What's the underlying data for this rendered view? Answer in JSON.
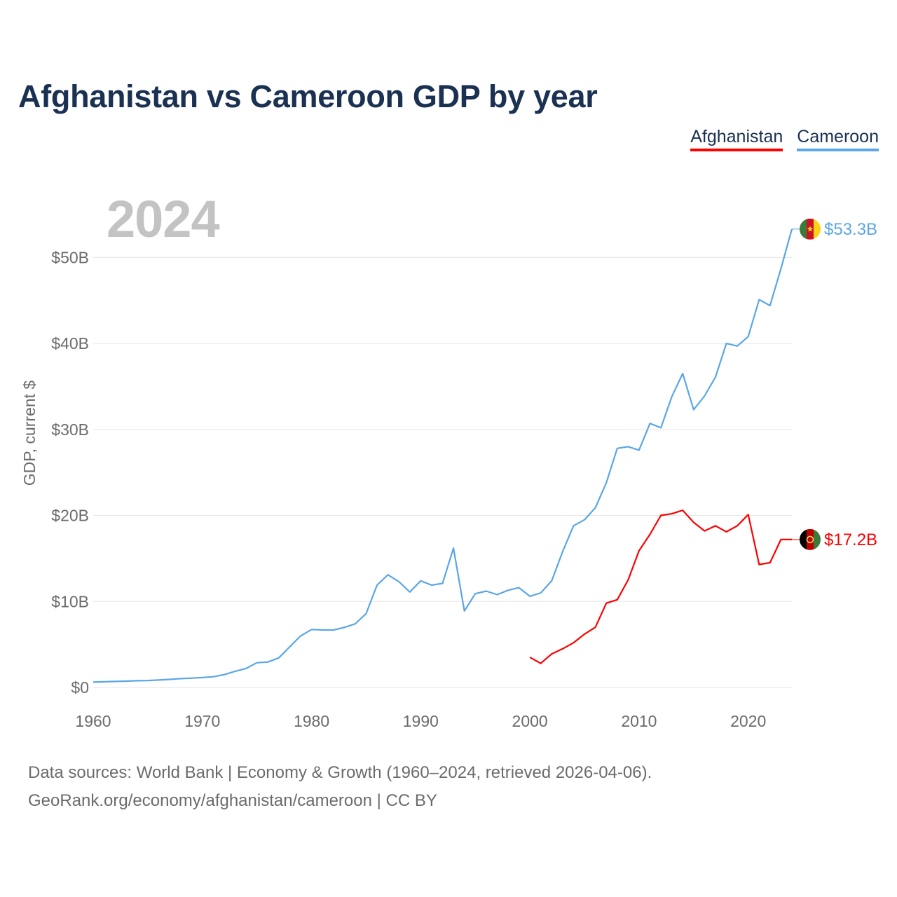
{
  "title": "Afghanistan vs Cameroon GDP by year",
  "legend": [
    {
      "label": "Afghanistan",
      "color": "#ff0000"
    },
    {
      "label": "Cameroon",
      "color": "#5ba6e6"
    }
  ],
  "year_watermark": "2024",
  "source": {
    "line1": "Data sources: World Bank | Economy & Growth (1960–2024, retrieved 2026-04-06).",
    "line2": "GeoRank.org/economy/afghanistan/cameroon | CC BY"
  },
  "chart_data": {
    "type": "line",
    "title": "Afghanistan vs Cameroon GDP by year",
    "xlabel": "",
    "ylabel": "GDP, current $",
    "xlim": [
      1960,
      2024
    ],
    "ylim": [
      0,
      55
    ],
    "y_unit": "billion USD",
    "x_ticks": [
      1960,
      1970,
      1980,
      1990,
      2000,
      2010,
      2020
    ],
    "y_ticks": [
      {
        "value": 0,
        "label": "$0"
      },
      {
        "value": 10,
        "label": "$10B"
      },
      {
        "value": 20,
        "label": "$20B"
      },
      {
        "value": 30,
        "label": "$30B"
      },
      {
        "value": 40,
        "label": "$40B"
      },
      {
        "value": 50,
        "label": "$50B"
      }
    ],
    "grid": true,
    "legend_position": "top-right",
    "series": [
      {
        "name": "Cameroon",
        "color": "#5ba6e6",
        "end_label": "$53.3B",
        "flag_icon": "cameroon-flag-icon",
        "x": [
          1960,
          1961,
          1962,
          1963,
          1964,
          1965,
          1966,
          1967,
          1968,
          1969,
          1970,
          1971,
          1972,
          1973,
          1974,
          1975,
          1976,
          1977,
          1978,
          1979,
          1980,
          1981,
          1982,
          1983,
          1984,
          1985,
          1986,
          1987,
          1988,
          1989,
          1990,
          1991,
          1992,
          1993,
          1994,
          1995,
          1996,
          1997,
          1998,
          1999,
          2000,
          2001,
          2002,
          2003,
          2004,
          2005,
          2006,
          2007,
          2008,
          2009,
          2010,
          2011,
          2012,
          2013,
          2014,
          2015,
          2016,
          2017,
          2018,
          2019,
          2020,
          2021,
          2022,
          2023,
          2024
        ],
        "values": [
          0.62,
          0.66,
          0.7,
          0.73,
          0.78,
          0.81,
          0.86,
          0.94,
          1.03,
          1.08,
          1.16,
          1.25,
          1.49,
          1.88,
          2.21,
          2.88,
          2.96,
          3.44,
          4.73,
          6.0,
          6.74,
          6.69,
          6.68,
          6.98,
          7.4,
          8.6,
          11.9,
          13.1,
          12.3,
          11.1,
          12.4,
          11.9,
          12.1,
          16.2,
          8.9,
          10.9,
          11.2,
          10.8,
          11.3,
          11.6,
          10.6,
          11.0,
          12.4,
          15.8,
          18.8,
          19.5,
          20.9,
          23.8,
          27.8,
          28.0,
          27.6,
          30.7,
          30.2,
          33.8,
          36.5,
          32.3,
          33.9,
          36.1,
          40.0,
          39.7,
          40.8,
          45.1,
          44.4,
          48.7,
          53.3
        ]
      },
      {
        "name": "Afghanistan",
        "color": "#ff0000",
        "end_label": "$17.2B",
        "flag_icon": "afghanistan-flag-icon",
        "x": [
          2000,
          2001,
          2002,
          2003,
          2004,
          2005,
          2006,
          2007,
          2008,
          2009,
          2010,
          2011,
          2012,
          2013,
          2014,
          2015,
          2016,
          2017,
          2018,
          2019,
          2020,
          2021,
          2022,
          2023,
          2024
        ],
        "values": [
          3.5,
          2.8,
          3.9,
          4.5,
          5.2,
          6.2,
          7.0,
          9.8,
          10.2,
          12.5,
          15.9,
          17.8,
          20.0,
          20.2,
          20.6,
          19.2,
          18.2,
          18.8,
          18.1,
          18.8,
          20.1,
          14.3,
          14.5,
          17.2,
          17.2
        ]
      }
    ]
  }
}
